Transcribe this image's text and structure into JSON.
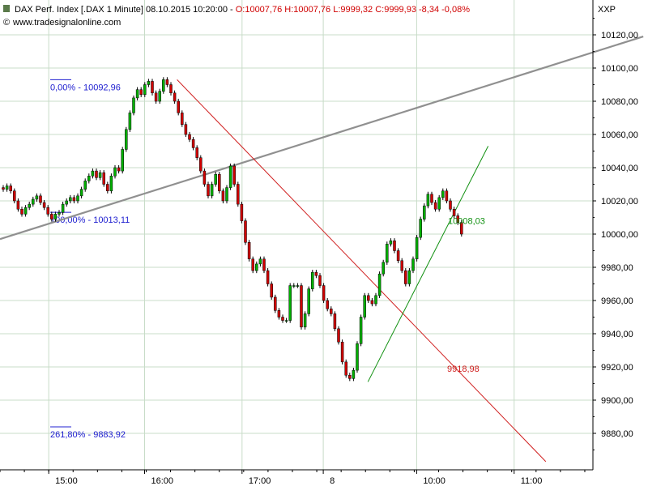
{
  "header": {
    "instrument": "DAX Perf. Index [.DAX  1 Minute] 08.10.2015 10:20:00 - ",
    "ohlc": "O:10007,76 H:10007,76 L:9999,32 C:9999,93 -8,34 -0,08%",
    "source": "www.tradesignalonline.com",
    "exchange": "XXP"
  },
  "colors": {
    "up": "#00b000",
    "down": "#d00000",
    "fib": "#2020d0",
    "trend_red": "#d02020",
    "trend_green": "#109010",
    "trend_gray": "#909090",
    "grid": "#c8dcc8"
  },
  "chart_data": {
    "type": "candlestick",
    "y_ticks": [
      "10120,00",
      "10100,00",
      "10080,00",
      "10060,00",
      "10040,00",
      "10020,00",
      "10000,00",
      "9980,00",
      "9960,00",
      "9940,00",
      "9920,00",
      "9900,00",
      "9880,00"
    ],
    "y_tick_values": [
      10120,
      10100,
      10080,
      10060,
      10040,
      10020,
      10000,
      9980,
      9960,
      9940,
      9920,
      9900,
      9880
    ],
    "ylim": [
      9860,
      10134
    ],
    "x_ticks": [
      "15:00",
      "16:00",
      "17:00",
      "8",
      "10:00",
      "11:00"
    ],
    "x_tick_bars": [
      60,
      178,
      298,
      398,
      513,
      633
    ],
    "xlim": [
      0,
      730
    ],
    "closes": [
      10027,
      10029,
      10026,
      10020,
      10015,
      10012,
      10016,
      10018,
      10021,
      10023,
      10019,
      10016,
      10012,
      10009,
      10012,
      10013,
      10018,
      10020,
      10022,
      10020,
      10023,
      10027,
      10032,
      10035,
      10038,
      10034,
      10037,
      10030,
      10026,
      10035,
      10040,
      10038,
      10051,
      10063,
      10073,
      10082,
      10087,
      10084,
      10090,
      10092,
      10085,
      10080,
      10086,
      10093,
      10090,
      10085,
      10080,
      10073,
      10066,
      10060,
      10057,
      10052,
      10046,
      10038,
      10030,
      10023,
      10030,
      10036,
      10026,
      10020,
      10028,
      10041,
      10030,
      10018,
      10008,
      9995,
      9985,
      9978,
      9982,
      9985,
      9978,
      9970,
      9962,
      9954,
      9950,
      9948,
      9948,
      9969,
      9969,
      9969,
      9944,
      9952,
      9967,
      9977,
      9975,
      9969,
      9960,
      9955,
      9952,
      9943,
      9935,
      9923,
      9915,
      9913,
      9918,
      9934,
      9950,
      9963,
      9960,
      9958,
      9963,
      9976,
      9983,
      9994,
      9996,
      9990,
      9984,
      9978,
      9970,
      9978,
      9985,
      9998,
      10009,
      10017,
      10024,
      10019,
      10015,
      10022,
      10026,
      10020,
      10015,
      10011,
      10007,
      10000
    ],
    "fib_levels": [
      {
        "label": "0,00% - 10092,96",
        "value": 10092.96
      },
      {
        "label": "100,00% - 10013,11",
        "value": 10013.11
      },
      {
        "label": "261,80% - 9883,92",
        "value": 9883.92
      }
    ],
    "trendlines": [
      {
        "color": "gray",
        "x1": 0,
        "y1": 9997,
        "x2": 792,
        "y2": 10119
      },
      {
        "color": "red",
        "x1": 218,
        "y1": 10093,
        "x2": 672,
        "y2": 9863
      },
      {
        "color": "green",
        "x1": 453,
        "y1": 9911,
        "x2": 601,
        "y2": 10053
      }
    ],
    "labels": [
      {
        "text": "10008,03",
        "value": 10008.03,
        "color": "green"
      },
      {
        "text": "9918,98",
        "value": 9918.98,
        "color": "red"
      }
    ]
  }
}
